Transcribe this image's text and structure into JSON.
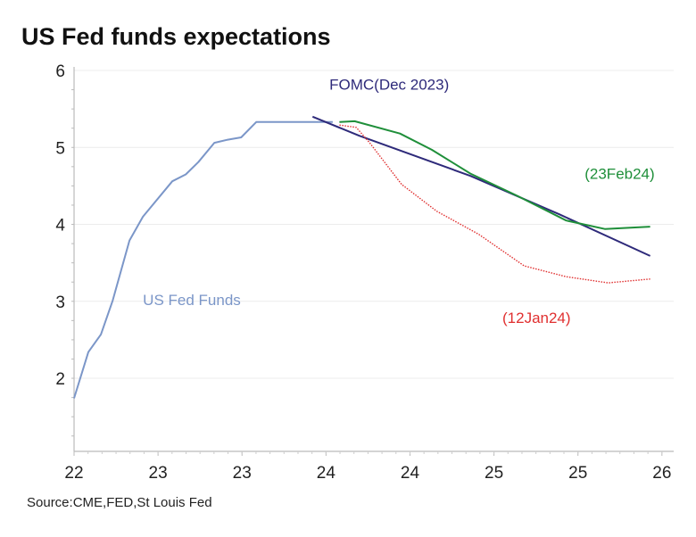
{
  "chart_data": {
    "type": "line",
    "title": "US Fed funds expectations",
    "source": "Source:CME,FED,St Louis Fed",
    "xlabel": "",
    "ylabel": "",
    "ylim": [
      1.05,
      6
    ],
    "xlim": [
      2022.0,
      2025.57
    ],
    "yticks": [
      2,
      3,
      4,
      5,
      6
    ],
    "xticks": [
      {
        "x": 2022.0,
        "label": "22"
      },
      {
        "x": 2022.5,
        "label": "23"
      },
      {
        "x": 2023.0,
        "label": "23"
      },
      {
        "x": 2023.5,
        "label": "24"
      },
      {
        "x": 2024.0,
        "label": "24"
      },
      {
        "x": 2024.5,
        "label": "25"
      },
      {
        "x": 2025.0,
        "label": "25"
      },
      {
        "x": 2025.5,
        "label": "26"
      }
    ],
    "grid": "horizontal",
    "series": [
      {
        "name": "US Fed Funds",
        "color": "#7b96c8",
        "style": "solid",
        "x": [
          2022.0,
          2022.085,
          2022.16,
          2022.23,
          2022.33,
          2022.41,
          2022.585,
          2022.665,
          2022.74,
          2022.835,
          2022.915,
          2022.995,
          2023.085,
          2023.54
        ],
        "y": [
          1.74,
          2.34,
          2.57,
          3.01,
          3.79,
          4.1,
          4.56,
          4.65,
          4.81,
          5.06,
          5.1,
          5.13,
          5.33,
          5.33
        ]
      },
      {
        "name": "FOMC(Dec 2023)",
        "color": "#2e2a7a",
        "style": "solid",
        "x": [
          2023.42,
          2023.7,
          2024.36,
          2024.89,
          2025.43
        ],
        "y": [
          5.4,
          5.15,
          4.63,
          4.13,
          3.59
        ]
      },
      {
        "name": "(23Feb24)",
        "color": "#1f8f3a",
        "style": "solid",
        "x": [
          2023.58,
          2023.67,
          2023.94,
          2024.13,
          2024.36,
          2024.64,
          2024.93,
          2025.16,
          2025.43
        ],
        "y": [
          5.33,
          5.34,
          5.18,
          4.97,
          4.66,
          4.37,
          4.05,
          3.94,
          3.97
        ]
      },
      {
        "name": "(12Jan24)",
        "color": "#e03030",
        "style": "dotted",
        "x": [
          2023.58,
          2023.68,
          2023.76,
          2023.95,
          2024.16,
          2024.41,
          2024.68,
          2024.93,
          2025.18,
          2025.43
        ],
        "y": [
          5.29,
          5.26,
          5.06,
          4.52,
          4.17,
          3.87,
          3.46,
          3.32,
          3.24,
          3.29
        ]
      }
    ],
    "annotations": [
      {
        "text": "FOMC(Dec 2023)",
        "x": 2023.52,
        "y": 5.75,
        "color": "#2e2a7a"
      },
      {
        "text": "(23Feb24)",
        "x": 2025.04,
        "y": 4.59,
        "color": "#1f8f3a"
      },
      {
        "text": "US Fed Funds",
        "x": 2022.41,
        "y": 2.95,
        "color": "#7b96c8"
      },
      {
        "text": "(12Jan24)",
        "x": 2024.55,
        "y": 2.72,
        "color": "#e03030"
      }
    ]
  }
}
